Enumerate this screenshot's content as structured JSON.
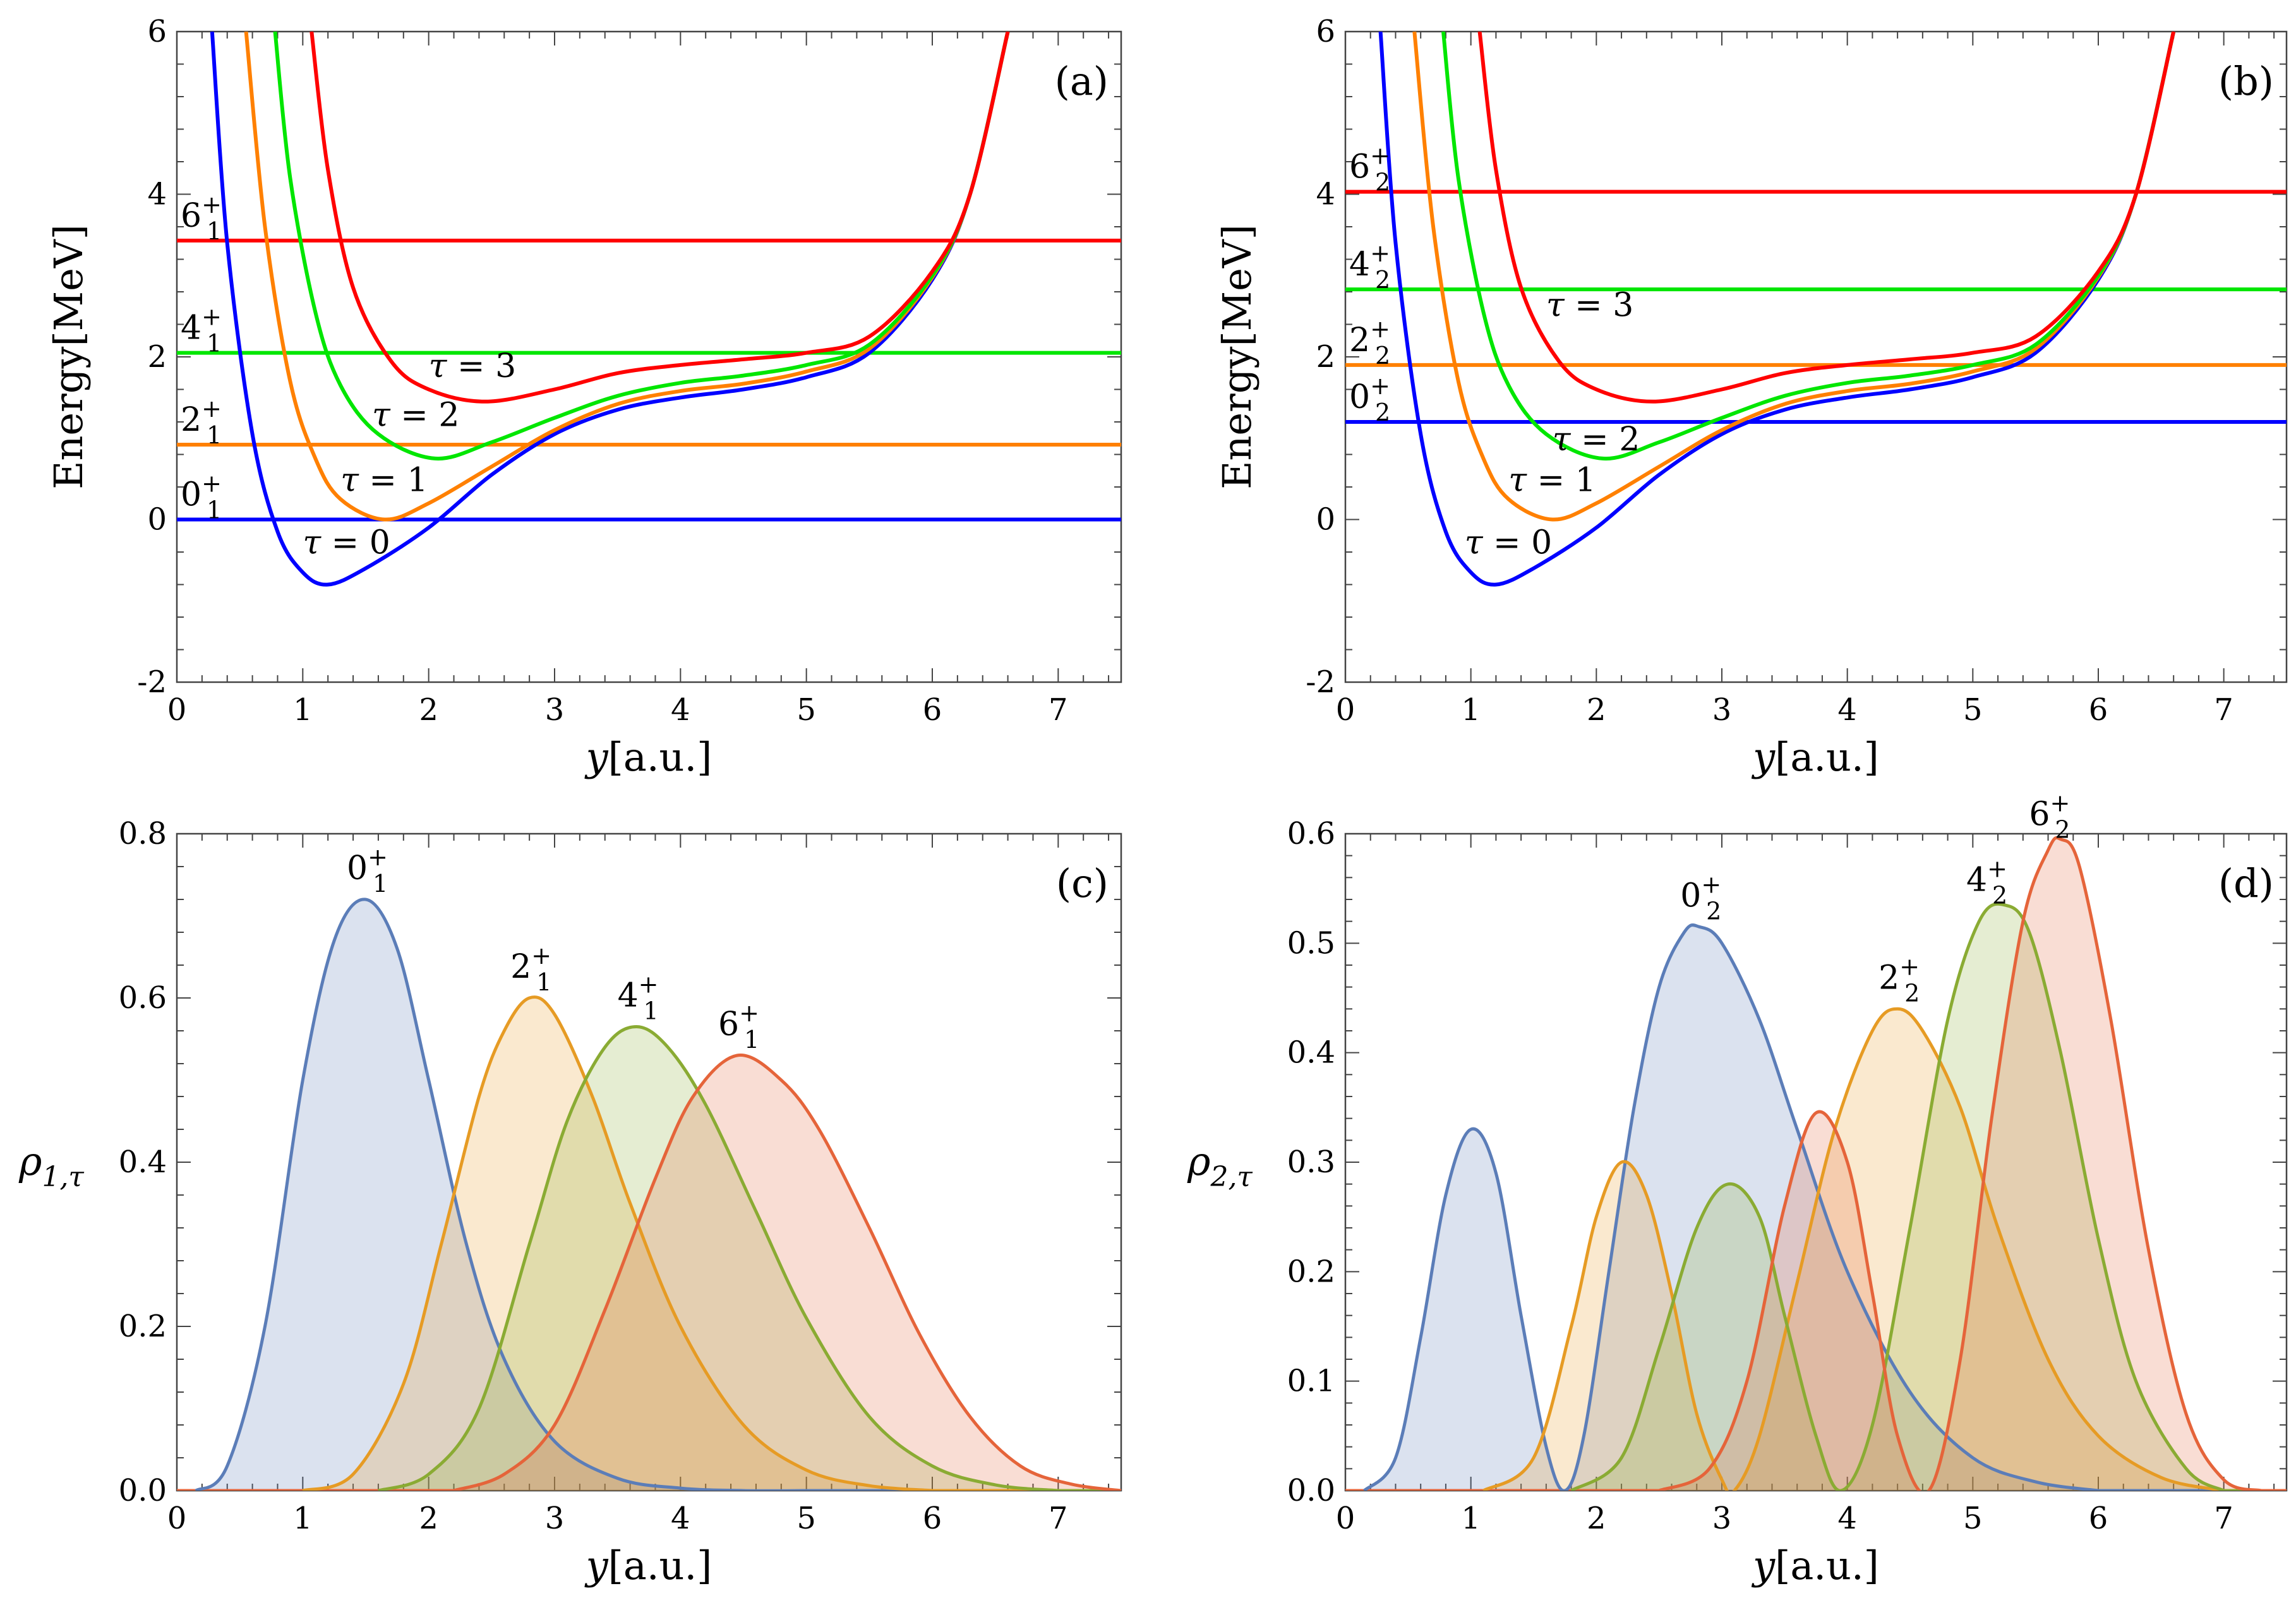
{
  "colors": {
    "tau0": "#0000ff",
    "tau1": "#ff8000",
    "tau2": "#00e600",
    "tau3": "#ff0000",
    "dens0": "#5b7db8",
    "dens1": "#e69b24",
    "dens2": "#8aab33",
    "dens3": "#e5643a"
  },
  "chart_data": [
    {
      "id": "a",
      "type": "line",
      "tag": "(a)",
      "xlabel": "y[a.u.]",
      "ylabel": "Energy[MeV]",
      "xlim": [
        0,
        7.5
      ],
      "ylim": [
        -2,
        6
      ],
      "xticks": [
        0,
        1,
        2,
        3,
        4,
        5,
        6,
        7
      ],
      "yticks": [
        -2,
        0,
        2,
        4,
        6
      ],
      "series": [
        {
          "name": "τ = 0",
          "color": "#0000ff",
          "x": [
            0.28,
            0.4,
            0.6,
            0.8,
            1.0,
            1.2,
            1.5,
            2.0,
            2.5,
            3.0,
            3.5,
            4.0,
            4.5,
            5.0,
            5.5,
            6.0,
            6.3,
            6.6
          ],
          "values": [
            6.0,
            3.4,
            1.05,
            -0.15,
            -0.65,
            -0.8,
            -0.6,
            -0.1,
            0.55,
            1.05,
            1.35,
            1.5,
            1.6,
            1.75,
            2.05,
            2.95,
            4.0,
            6.0
          ]
        },
        {
          "name": "τ = 1",
          "color": "#ff8000",
          "x": [
            0.55,
            0.7,
            0.9,
            1.1,
            1.3,
            1.65,
            2.0,
            2.5,
            3.0,
            3.5,
            4.0,
            4.5,
            5.0,
            5.5,
            6.0,
            6.3,
            6.6
          ],
          "values": [
            6.0,
            3.6,
            1.7,
            0.75,
            0.25,
            0.0,
            0.2,
            0.65,
            1.1,
            1.42,
            1.58,
            1.67,
            1.82,
            2.1,
            2.98,
            4.0,
            6.0
          ]
        },
        {
          "name": "τ = 2",
          "color": "#00e600",
          "x": [
            0.78,
            0.9,
            1.1,
            1.3,
            1.6,
            2.05,
            2.5,
            3.0,
            3.5,
            4.0,
            4.5,
            5.0,
            5.5,
            6.0,
            6.3,
            6.6
          ],
          "values": [
            6.0,
            4.2,
            2.55,
            1.65,
            1.05,
            0.75,
            0.95,
            1.25,
            1.52,
            1.68,
            1.77,
            1.9,
            2.15,
            3.0,
            4.0,
            6.0
          ]
        },
        {
          "name": "τ = 3",
          "color": "#ff0000",
          "x": [
            1.07,
            1.2,
            1.4,
            1.7,
            2.0,
            2.45,
            3.0,
            3.5,
            4.0,
            4.5,
            5.0,
            5.5,
            6.0,
            6.3,
            6.6
          ],
          "values": [
            6.0,
            4.3,
            2.85,
            1.95,
            1.6,
            1.45,
            1.6,
            1.8,
            1.9,
            1.97,
            2.05,
            2.25,
            3.05,
            4.0,
            6.0
          ]
        }
      ],
      "levels": [
        {
          "state": "0",
          "sub": "1",
          "energy": 0.0,
          "color": "#0000ff"
        },
        {
          "state": "2",
          "sub": "1",
          "energy": 0.92,
          "color": "#ff8000"
        },
        {
          "state": "4",
          "sub": "1",
          "energy": 2.05,
          "color": "#00e600"
        },
        {
          "state": "6",
          "sub": "1",
          "energy": 3.43,
          "color": "#ff0000"
        }
      ],
      "annotations": [
        {
          "text": "τ = 0",
          "x": 1.0,
          "y": -0.42
        },
        {
          "text": "τ = 1",
          "x": 1.3,
          "y": 0.35
        },
        {
          "text": "τ = 2",
          "x": 1.55,
          "y": 1.15
        },
        {
          "text": "τ = 3",
          "x": 2.0,
          "y": 1.75
        }
      ]
    },
    {
      "id": "b",
      "type": "line",
      "tag": "(b)",
      "xlabel": "y[a.u.]",
      "ylabel": "Energy[MeV]",
      "xlim": [
        0,
        7.5
      ],
      "ylim": [
        -2,
        6
      ],
      "xticks": [
        0,
        1,
        2,
        3,
        4,
        5,
        6,
        7
      ],
      "yticks": [
        -2,
        0,
        2,
        4,
        6
      ],
      "series": [
        {
          "name": "τ = 0",
          "color": "#0000ff",
          "x": [
            0.28,
            0.4,
            0.6,
            0.8,
            1.0,
            1.2,
            1.5,
            2.0,
            2.5,
            3.0,
            3.5,
            4.0,
            4.5,
            5.0,
            5.5,
            6.0,
            6.3,
            6.6
          ],
          "values": [
            6.0,
            3.4,
            1.05,
            -0.15,
            -0.65,
            -0.8,
            -0.6,
            -0.1,
            0.55,
            1.05,
            1.35,
            1.5,
            1.6,
            1.75,
            2.05,
            2.95,
            4.0,
            6.0
          ]
        },
        {
          "name": "τ = 1",
          "color": "#ff8000",
          "x": [
            0.55,
            0.7,
            0.9,
            1.1,
            1.3,
            1.65,
            2.0,
            2.5,
            3.0,
            3.5,
            4.0,
            4.5,
            5.0,
            5.5,
            6.0,
            6.3,
            6.6
          ],
          "values": [
            6.0,
            3.6,
            1.7,
            0.75,
            0.25,
            0.0,
            0.2,
            0.65,
            1.1,
            1.42,
            1.58,
            1.67,
            1.82,
            2.1,
            2.98,
            4.0,
            6.0
          ]
        },
        {
          "name": "τ = 2",
          "color": "#00e600",
          "x": [
            0.78,
            0.9,
            1.1,
            1.3,
            1.6,
            2.05,
            2.5,
            3.0,
            3.5,
            4.0,
            4.5,
            5.0,
            5.5,
            6.0,
            6.3,
            6.6
          ],
          "values": [
            6.0,
            4.2,
            2.55,
            1.65,
            1.05,
            0.75,
            0.95,
            1.25,
            1.52,
            1.68,
            1.77,
            1.9,
            2.15,
            3.0,
            4.0,
            6.0
          ]
        },
        {
          "name": "τ = 3",
          "color": "#ff0000",
          "x": [
            1.07,
            1.2,
            1.4,
            1.7,
            2.0,
            2.45,
            3.0,
            3.5,
            4.0,
            4.5,
            5.0,
            5.5,
            6.0,
            6.3,
            6.6
          ],
          "values": [
            6.0,
            4.3,
            2.85,
            1.95,
            1.6,
            1.45,
            1.6,
            1.8,
            1.9,
            1.97,
            2.05,
            2.25,
            3.05,
            4.0,
            6.0
          ]
        }
      ],
      "levels": [
        {
          "state": "0",
          "sub": "2",
          "energy": 1.2,
          "color": "#0000ff"
        },
        {
          "state": "2",
          "sub": "2",
          "energy": 1.9,
          "color": "#ff8000"
        },
        {
          "state": "4",
          "sub": "2",
          "energy": 2.83,
          "color": "#00e600"
        },
        {
          "state": "6",
          "sub": "2",
          "energy": 4.03,
          "color": "#ff0000"
        }
      ],
      "annotations": [
        {
          "text": "τ = 0",
          "x": 0.95,
          "y": -0.42
        },
        {
          "text": "τ = 1",
          "x": 1.3,
          "y": 0.35
        },
        {
          "text": "τ = 2",
          "x": 1.65,
          "y": 0.85
        },
        {
          "text": "τ = 3",
          "x": 1.6,
          "y": 2.5
        }
      ]
    },
    {
      "id": "c",
      "type": "area",
      "tag": "(c)",
      "xlabel": "y[a.u.]",
      "ylabel": "ρ1,τ",
      "xlim": [
        0,
        7.5
      ],
      "ylim": [
        0,
        0.8
      ],
      "xticks": [
        0,
        1,
        2,
        3,
        4,
        5,
        6,
        7
      ],
      "yticks": [
        0.0,
        0.2,
        0.4,
        0.6,
        0.8
      ],
      "series": [
        {
          "name": "0",
          "sub": "1",
          "color": "#5b7db8",
          "peak_x": 1.5,
          "peak": 0.72,
          "x": [
            0.15,
            0.4,
            0.7,
            1.0,
            1.25,
            1.5,
            1.75,
            2.0,
            2.3,
            2.6,
            3.0,
            3.5,
            4.0,
            4.5,
            5.0
          ],
          "values": [
            0.0,
            0.03,
            0.2,
            0.5,
            0.67,
            0.72,
            0.66,
            0.5,
            0.3,
            0.16,
            0.06,
            0.015,
            0.003,
            0.0,
            0.0
          ]
        },
        {
          "name": "2",
          "sub": "1",
          "color": "#e69b24",
          "peak_x": 2.8,
          "peak": 0.6,
          "x": [
            1.0,
            1.4,
            1.8,
            2.1,
            2.4,
            2.6,
            2.8,
            3.0,
            3.3,
            3.6,
            4.0,
            4.5,
            5.0,
            5.5,
            6.0
          ],
          "values": [
            0.0,
            0.02,
            0.13,
            0.3,
            0.48,
            0.56,
            0.6,
            0.58,
            0.48,
            0.35,
            0.2,
            0.08,
            0.025,
            0.006,
            0.0
          ]
        },
        {
          "name": "4",
          "sub": "1",
          "color": "#8aab33",
          "peak_x": 3.65,
          "peak": 0.565,
          "x": [
            1.6,
            2.0,
            2.4,
            2.8,
            3.1,
            3.4,
            3.65,
            3.9,
            4.2,
            4.6,
            5.0,
            5.5,
            6.0,
            6.5,
            7.0
          ],
          "values": [
            0.0,
            0.02,
            0.1,
            0.3,
            0.45,
            0.54,
            0.565,
            0.54,
            0.47,
            0.34,
            0.21,
            0.09,
            0.03,
            0.007,
            0.0
          ]
        },
        {
          "name": "6",
          "sub": "1",
          "color": "#e5643a",
          "peak_x": 4.45,
          "peak": 0.53,
          "x": [
            2.2,
            2.6,
            3.0,
            3.4,
            3.8,
            4.1,
            4.45,
            4.8,
            5.1,
            5.5,
            5.9,
            6.3,
            6.7,
            7.1,
            7.5
          ],
          "values": [
            0.0,
            0.02,
            0.08,
            0.22,
            0.38,
            0.48,
            0.53,
            0.5,
            0.44,
            0.32,
            0.19,
            0.09,
            0.03,
            0.008,
            0.0
          ]
        }
      ]
    },
    {
      "id": "d",
      "type": "area",
      "tag": "(d)",
      "xlabel": "y[a.u.]",
      "ylabel": "ρ2,τ",
      "xlim": [
        0,
        7.5
      ],
      "ylim": [
        0,
        0.6
      ],
      "xticks": [
        0,
        1,
        2,
        3,
        4,
        5,
        6,
        7
      ],
      "yticks": [
        0.0,
        0.1,
        0.2,
        0.3,
        0.4,
        0.5,
        0.6
      ],
      "series": [
        {
          "name": "0",
          "sub": "2",
          "color": "#5b7db8",
          "peak_x": 2.82,
          "peak": 0.515,
          "x": [
            0.15,
            0.4,
            0.6,
            0.8,
            1.0,
            1.2,
            1.4,
            1.6,
            1.75,
            1.9,
            2.1,
            2.3,
            2.5,
            2.7,
            2.82,
            3.0,
            3.3,
            3.6,
            4.0,
            4.5,
            5.0,
            5.5,
            6.0
          ],
          "values": [
            0.0,
            0.03,
            0.14,
            0.27,
            0.33,
            0.29,
            0.16,
            0.04,
            0.0,
            0.05,
            0.2,
            0.35,
            0.46,
            0.51,
            0.515,
            0.5,
            0.43,
            0.33,
            0.2,
            0.09,
            0.03,
            0.008,
            0.0
          ]
        },
        {
          "name": "2",
          "sub": "2",
          "color": "#e69b24",
          "peak_x": 4.4,
          "peak": 0.44,
          "x": [
            1.1,
            1.5,
            1.8,
            2.0,
            2.2,
            2.4,
            2.6,
            2.8,
            3.0,
            3.1,
            3.3,
            3.6,
            3.9,
            4.2,
            4.4,
            4.6,
            4.9,
            5.2,
            5.6,
            6.0,
            6.5,
            7.0
          ],
          "values": [
            0.0,
            0.03,
            0.15,
            0.25,
            0.3,
            0.27,
            0.18,
            0.07,
            0.01,
            0.0,
            0.05,
            0.19,
            0.33,
            0.42,
            0.44,
            0.42,
            0.35,
            0.24,
            0.12,
            0.05,
            0.012,
            0.0
          ]
        },
        {
          "name": "4",
          "sub": "2",
          "color": "#8aab33",
          "peak_x": 5.25,
          "peak": 0.535,
          "x": [
            1.8,
            2.2,
            2.5,
            2.8,
            3.05,
            3.3,
            3.5,
            3.75,
            3.95,
            4.2,
            4.5,
            4.8,
            5.05,
            5.25,
            5.45,
            5.7,
            6.0,
            6.3,
            6.7,
            7.0
          ],
          "values": [
            0.0,
            0.03,
            0.13,
            0.24,
            0.28,
            0.25,
            0.16,
            0.05,
            0.0,
            0.06,
            0.24,
            0.43,
            0.52,
            0.535,
            0.51,
            0.4,
            0.23,
            0.1,
            0.02,
            0.0
          ]
        },
        {
          "name": "6",
          "sub": "2",
          "color": "#e5643a",
          "peak_x": 5.7,
          "peak": 0.595,
          "x": [
            2.5,
            2.9,
            3.2,
            3.5,
            3.75,
            4.0,
            4.2,
            4.4,
            4.65,
            4.9,
            5.15,
            5.4,
            5.6,
            5.7,
            5.85,
            6.1,
            6.4,
            6.7,
            7.0,
            7.3
          ],
          "values": [
            0.0,
            0.02,
            0.1,
            0.26,
            0.345,
            0.3,
            0.18,
            0.05,
            0.0,
            0.12,
            0.34,
            0.52,
            0.585,
            0.595,
            0.57,
            0.43,
            0.22,
            0.07,
            0.01,
            0.0
          ]
        }
      ]
    }
  ]
}
